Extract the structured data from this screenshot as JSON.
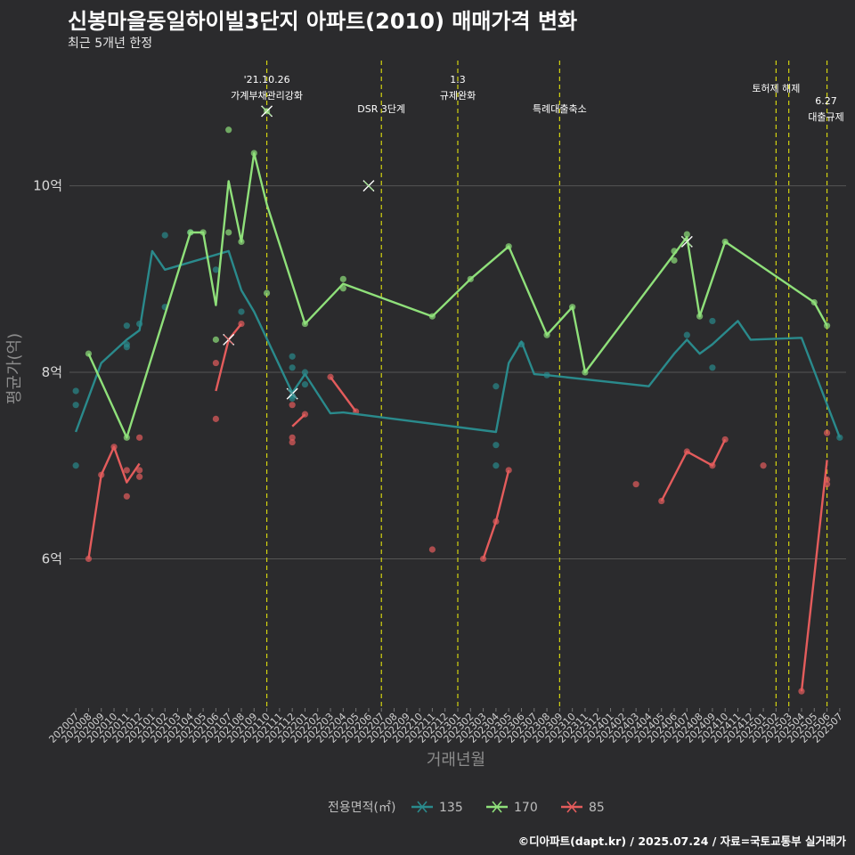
{
  "header": {
    "title": "신봉마을동일하이빌3단지 아파트(2010) 매매가격 변화",
    "subtitle": "최근 5개년 한정"
  },
  "footer": {
    "caption": "©디아파트(dapt.kr) / 2025.07.24 / 자료=국토교통부 실거래가"
  },
  "colors": {
    "background": "#2b2b2d",
    "grid": "#555555",
    "event_line": "#d4d40f",
    "s135": "#2a8a8c",
    "s170": "#8fe07a",
    "s85": "#e45c5c"
  },
  "chart_data": {
    "type": "line",
    "xlabel": "거래년월",
    "ylabel": "평균가(억)",
    "x_ticks": [
      "202007",
      "202008",
      "202009",
      "202010",
      "202011",
      "202012",
      "202101",
      "202102",
      "202103",
      "202104",
      "202105",
      "202106",
      "202107",
      "202108",
      "202109",
      "202110",
      "202111",
      "202112",
      "202201",
      "202202",
      "202203",
      "202204",
      "202205",
      "202206",
      "202207",
      "202208",
      "202209",
      "202210",
      "202211",
      "202212",
      "202301",
      "202302",
      "202303",
      "202304",
      "202305",
      "202306",
      "202307",
      "202308",
      "202309",
      "202310",
      "202311",
      "202312",
      "202401",
      "202402",
      "202403",
      "202404",
      "202405",
      "202406",
      "202407",
      "202408",
      "202409",
      "202410",
      "202411",
      "202412",
      "202501",
      "202502",
      "202503",
      "202504",
      "202505",
      "202506",
      "202507"
    ],
    "y_ticks": [
      {
        "value": 6,
        "label": "6억"
      },
      {
        "value": 8,
        "label": "8억"
      },
      {
        "value": 10,
        "label": "10억"
      }
    ],
    "ylim": [
      4.4,
      11.4
    ],
    "grid": true,
    "legend": {
      "title": "전용면적(㎡)",
      "position": "bottom"
    },
    "events": [
      {
        "month": "202110",
        "label": [
          "'21.10.26",
          "가계부채관리강화"
        ]
      },
      {
        "month": "202207",
        "label": [
          "DSR 3단계"
        ]
      },
      {
        "month": "202301",
        "label": [
          "1.3",
          "규제완화"
        ]
      },
      {
        "month": "202309",
        "label": [
          "특례대출축소"
        ]
      },
      {
        "month": "202502",
        "label": [
          "토허제 해제"
        ]
      },
      {
        "month": "202503",
        "label": []
      },
      {
        "month": "202506",
        "label": [
          "6.27",
          "대출규제"
        ]
      }
    ],
    "series": [
      {
        "name": "135",
        "color_key": "s135",
        "line": [
          [
            "202007",
            7.36
          ],
          [
            "202009",
            8.1
          ],
          [
            "202011",
            8.35
          ],
          [
            "202012",
            8.45
          ],
          [
            "202101",
            9.3
          ],
          [
            "202102",
            9.1
          ],
          [
            "202107",
            9.3
          ],
          [
            "202108",
            8.88
          ],
          [
            "202109",
            8.65
          ],
          [
            "202112",
            7.78
          ],
          [
            "202201",
            7.98
          ],
          [
            "202203",
            7.56
          ],
          [
            "202204",
            7.57
          ],
          [
            "202304",
            7.36
          ],
          [
            "202305",
            8.1
          ],
          [
            "202306",
            8.33
          ],
          [
            "202307",
            7.98
          ],
          [
            "202308",
            7.97
          ],
          [
            "202404",
            7.85
          ],
          [
            "202406",
            8.2
          ],
          [
            "202407",
            8.35
          ],
          [
            "202408",
            8.2
          ],
          [
            "202409",
            8.3
          ],
          [
            "202411",
            8.55
          ],
          [
            "202412",
            8.35
          ],
          [
            "202504",
            8.37
          ],
          [
            "202507",
            7.3
          ]
        ],
        "points": [
          [
            "202007",
            7.8
          ],
          [
            "202007",
            7.65
          ],
          [
            "202007",
            7.0
          ],
          [
            "202011",
            8.5
          ],
          [
            "202011",
            8.3
          ],
          [
            "202011",
            8.27
          ],
          [
            "202012",
            8.52
          ],
          [
            "202102",
            9.47
          ],
          [
            "202102",
            8.7
          ],
          [
            "202104",
            9.5
          ],
          [
            "202106",
            9.1
          ],
          [
            "202108",
            8.65
          ],
          [
            "202112",
            8.17
          ],
          [
            "202112",
            8.05
          ],
          [
            "202112",
            7.75
          ],
          [
            "202112",
            7.72
          ],
          [
            "202201",
            8.0
          ],
          [
            "202201",
            7.87
          ],
          [
            "202304",
            7.85
          ],
          [
            "202304",
            7.22
          ],
          [
            "202304",
            7.0
          ],
          [
            "202306",
            8.3
          ],
          [
            "202308",
            7.97
          ],
          [
            "202407",
            8.4
          ],
          [
            "202409",
            8.55
          ],
          [
            "202409",
            8.05
          ],
          [
            "202507",
            7.3
          ]
        ],
        "cross": [
          [
            "202112",
            7.77
          ]
        ]
      },
      {
        "name": "170",
        "color_key": "s170",
        "line": [
          [
            "202008",
            8.2
          ],
          [
            "202011",
            7.3
          ],
          [
            "202104",
            9.5
          ],
          [
            "202105",
            9.5
          ],
          [
            "202106",
            8.72
          ],
          [
            "202107",
            10.05
          ],
          [
            "202108",
            9.4
          ],
          [
            "202109",
            10.35
          ],
          [
            "202110",
            9.8
          ],
          [
            "202201",
            8.52
          ],
          [
            "202204",
            8.95
          ],
          [
            "202211",
            8.6
          ],
          [
            "202302",
            9.0
          ],
          [
            "202305",
            9.35
          ],
          [
            "202308",
            8.4
          ],
          [
            "202310",
            8.7
          ],
          [
            "202311",
            8.0
          ],
          [
            "202407",
            9.45
          ],
          [
            "202408",
            8.6
          ],
          [
            "202410",
            9.4
          ],
          [
            "202505",
            8.75
          ],
          [
            "202506",
            8.5
          ]
        ],
        "points": [
          [
            "202008",
            8.2
          ],
          [
            "202011",
            7.3
          ],
          [
            "202104",
            9.5
          ],
          [
            "202105",
            9.5
          ],
          [
            "202106",
            8.35
          ],
          [
            "202107",
            10.6
          ],
          [
            "202107",
            9.5
          ],
          [
            "202108",
            9.4
          ],
          [
            "202109",
            10.35
          ],
          [
            "202110",
            8.85
          ],
          [
            "202110",
            10.8
          ],
          [
            "202201",
            8.52
          ],
          [
            "202204",
            9.0
          ],
          [
            "202204",
            8.9
          ],
          [
            "202211",
            8.6
          ],
          [
            "202302",
            9.0
          ],
          [
            "202305",
            9.35
          ],
          [
            "202308",
            8.4
          ],
          [
            "202310",
            8.7
          ],
          [
            "202311",
            8.0
          ],
          [
            "202406",
            9.3
          ],
          [
            "202406",
            9.2
          ],
          [
            "202407",
            9.48
          ],
          [
            "202408",
            8.6
          ],
          [
            "202410",
            9.4
          ],
          [
            "202505",
            8.75
          ],
          [
            "202506",
            8.5
          ]
        ],
        "cross": [
          [
            "202110",
            10.8
          ],
          [
            "202206",
            10.0
          ],
          [
            "202407",
            9.4
          ]
        ]
      },
      {
        "name": "85",
        "color_key": "s85",
        "segments": [
          [
            [
              "202008",
              6.0
            ],
            [
              "202009",
              6.9
            ],
            [
              "202010",
              7.2
            ],
            [
              "202011",
              6.82
            ],
            [
              "202012",
              7.02
            ]
          ],
          [
            [
              "202106",
              7.8
            ],
            [
              "202107",
              8.35
            ],
            [
              "202108",
              8.52
            ]
          ],
          [
            [
              "202112",
              7.42
            ],
            [
              "202201",
              7.55
            ]
          ],
          [
            [
              "202203",
              7.95
            ],
            [
              "202205",
              7.58
            ]
          ],
          [
            [
              "202303",
              6.0
            ],
            [
              "202304",
              6.4
            ],
            [
              "202305",
              6.95
            ]
          ],
          [
            [
              "202405",
              6.62
            ],
            [
              "202407",
              7.15
            ],
            [
              "202409",
              7.0
            ],
            [
              "202410",
              7.28
            ]
          ],
          [
            [
              "202504",
              4.58
            ],
            [
              "202506",
              7.06
            ]
          ]
        ],
        "points": [
          [
            "202008",
            6.0
          ],
          [
            "202009",
            6.9
          ],
          [
            "202010",
            7.2
          ],
          [
            "202011",
            6.95
          ],
          [
            "202011",
            6.67
          ],
          [
            "202012",
            7.3
          ],
          [
            "202012",
            6.95
          ],
          [
            "202012",
            6.88
          ],
          [
            "202106",
            8.1
          ],
          [
            "202106",
            7.5
          ],
          [
            "202108",
            8.52
          ],
          [
            "202112",
            7.65
          ],
          [
            "202112",
            7.3
          ],
          [
            "202112",
            7.25
          ],
          [
            "202201",
            7.55
          ],
          [
            "202203",
            7.95
          ],
          [
            "202205",
            7.58
          ],
          [
            "202211",
            6.1
          ],
          [
            "202303",
            6.0
          ],
          [
            "202304",
            6.4
          ],
          [
            "202305",
            6.95
          ],
          [
            "202403",
            6.8
          ],
          [
            "202405",
            6.62
          ],
          [
            "202407",
            7.15
          ],
          [
            "202409",
            7.0
          ],
          [
            "202410",
            7.28
          ],
          [
            "202501",
            7.0
          ],
          [
            "202504",
            4.58
          ],
          [
            "202506",
            7.35
          ],
          [
            "202506",
            6.8
          ],
          [
            "202506",
            6.85
          ]
        ],
        "cross": [
          [
            "202107",
            8.35
          ]
        ]
      }
    ]
  }
}
